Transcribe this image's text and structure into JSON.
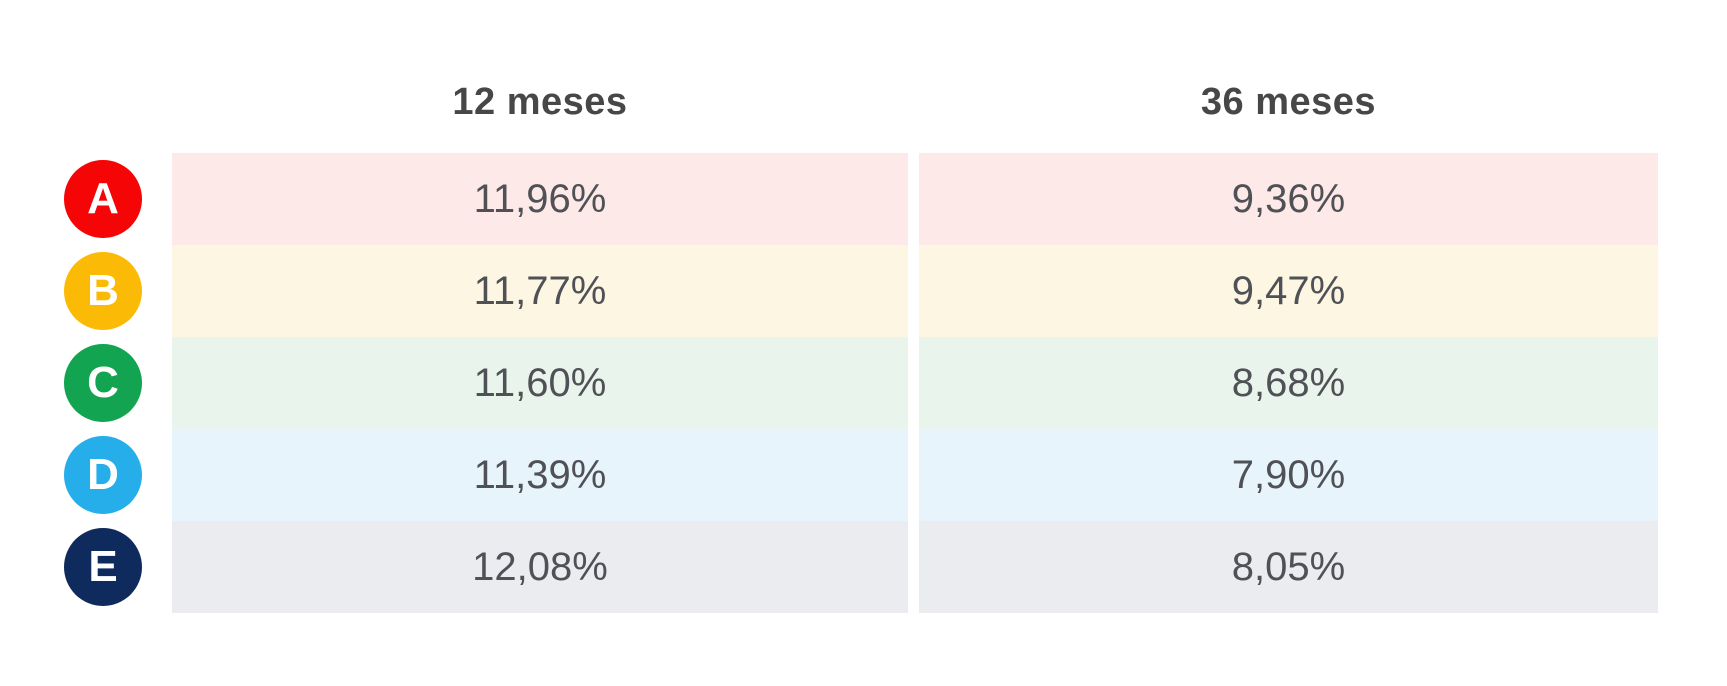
{
  "header": {
    "col1": "12 meses",
    "col2": "36 meses"
  },
  "table": {
    "rows": [
      {
        "label": "A",
        "circle_color": "#f50505",
        "tint": "#fce9e8",
        "v12": "11,96%",
        "v36": "9,36%"
      },
      {
        "label": "B",
        "circle_color": "#fbba05",
        "tint": "#fdf6e3",
        "v12": "11,77%",
        "v36": "9,47%"
      },
      {
        "label": "C",
        "circle_color": "#12a451",
        "tint": "#e9f4ec",
        "v12": "11,60%",
        "v36": "8,68%"
      },
      {
        "label": "D",
        "circle_color": "#25aeea",
        "tint": "#e7f4fb",
        "v12": "11,39%",
        "v36": "7,90%"
      },
      {
        "label": "E",
        "circle_color": "#0f2a5c",
        "tint": "#eaecef",
        "v12": "12,08%",
        "v36": "8,05%"
      }
    ]
  },
  "chart_data": {
    "type": "table",
    "columns": [
      "12 meses",
      "36 meses"
    ],
    "row_labels": [
      "A",
      "B",
      "C",
      "D",
      "E"
    ],
    "values_text": [
      [
        "11,96%",
        "9,36%"
      ],
      [
        "11,77%",
        "9,47%"
      ],
      [
        "11,60%",
        "8,68%"
      ],
      [
        "11,39%",
        "7,90%"
      ],
      [
        "12,08%",
        "8,05%"
      ]
    ],
    "values_percent": {
      "12 meses": [
        11.96,
        11.77,
        11.6,
        11.39,
        12.08
      ],
      "36 meses": [
        9.36,
        9.47,
        8.68,
        7.9,
        8.05
      ]
    },
    "row_badge_colors": [
      "#f50505",
      "#fbba05",
      "#12a451",
      "#25aeea",
      "#0f2a5c"
    ],
    "row_background_tints": [
      "#fce9e8",
      "#fdf6e3",
      "#e9f4ec",
      "#e7f4fb",
      "#eaecef"
    ],
    "decimal_separator": ",",
    "unit": "%",
    "legend_position": "left-badges",
    "grid": false
  },
  "colors": {
    "background": "#ffffff",
    "header_text": "#474747",
    "value_text": "#4f5156",
    "badge_text": "#ffffff"
  }
}
